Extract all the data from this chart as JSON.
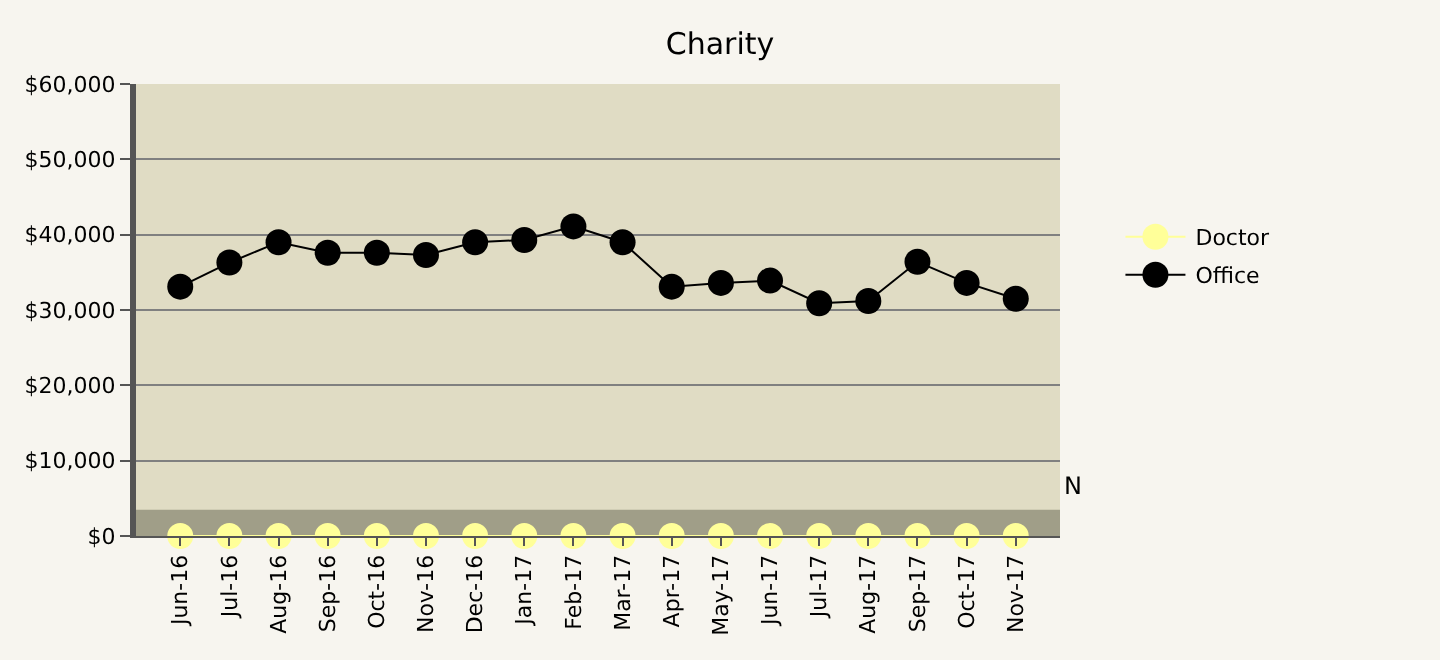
{
  "chart_data": {
    "type": "line",
    "title": "Charity",
    "categories": [
      "Jun-16",
      "Jul-16",
      "Aug-16",
      "Sep-16",
      "Oct-16",
      "Nov-16",
      "Dec-16",
      "Jan-17",
      "Feb-17",
      "Mar-17",
      "Apr-17",
      "May-17",
      "Jun-17",
      "Jul-17",
      "Aug-17",
      "Sep-17",
      "Oct-17",
      "Nov-17"
    ],
    "series": [
      {
        "name": "Doctor",
        "color": "#ffff99",
        "values": [
          0,
          0,
          0,
          0,
          0,
          0,
          0,
          0,
          0,
          0,
          0,
          0,
          0,
          0,
          0,
          0,
          0,
          0
        ]
      },
      {
        "name": "Office",
        "color": "#000000",
        "values": [
          33100,
          36300,
          39000,
          37600,
          37600,
          37300,
          39000,
          39300,
          41100,
          39000,
          33100,
          33600,
          33900,
          30900,
          31200,
          36400,
          33600,
          31500
        ]
      }
    ],
    "ylim": [
      0,
      60000
    ],
    "yticks": [
      {
        "value": 0,
        "label": "$0"
      },
      {
        "value": 10000,
        "label": "$10,000"
      },
      {
        "value": 20000,
        "label": "$20,000"
      },
      {
        "value": 30000,
        "label": "$30,000"
      },
      {
        "value": 40000,
        "label": "$40,000"
      },
      {
        "value": 50000,
        "label": "$50,000"
      },
      {
        "value": 60000,
        "label": "$60,000"
      }
    ],
    "bands": [
      {
        "axis": "y",
        "from": 0,
        "to": 3500,
        "color": "#a09e88"
      }
    ],
    "annotations": [
      "N"
    ],
    "grid": "y",
    "legend": "right",
    "marker": "circle",
    "line_style": "solid"
  }
}
